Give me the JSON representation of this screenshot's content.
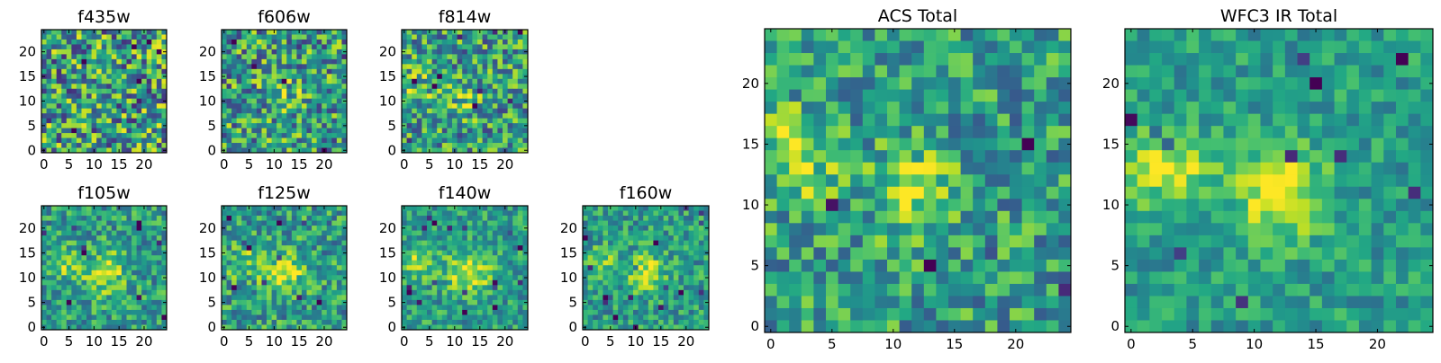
{
  "chart_data": {
    "type": "heatmap",
    "colormap": "viridis",
    "panels": [
      {
        "title": "f435w",
        "rows": 25,
        "cols": 25,
        "xlim": [
          0,
          24
        ],
        "ylim": [
          0,
          24
        ],
        "xticks": [
          0,
          5,
          10,
          15,
          20
        ],
        "yticks": [
          0,
          5,
          10,
          15,
          20
        ],
        "pattern": "noise",
        "noise": 0.85,
        "sources": []
      },
      {
        "title": "f606w",
        "rows": 25,
        "cols": 25,
        "xlim": [
          0,
          24
        ],
        "ylim": [
          0,
          24
        ],
        "xticks": [
          0,
          5,
          10,
          15,
          20
        ],
        "yticks": [
          0,
          5,
          10,
          15,
          20
        ],
        "pattern": "noise",
        "noise": 0.75,
        "sources": [
          {
            "x": 12,
            "y": 11,
            "amp": 0.15,
            "sigma": 2.5
          }
        ]
      },
      {
        "title": "f814w",
        "rows": 25,
        "cols": 25,
        "xlim": [
          0,
          24
        ],
        "ylim": [
          0,
          24
        ],
        "xticks": [
          0,
          5,
          10,
          15,
          20
        ],
        "yticks": [
          0,
          5,
          10,
          15,
          20
        ],
        "pattern": "noise",
        "noise": 0.7,
        "sources": [
          {
            "x": 12,
            "y": 11,
            "amp": 0.2,
            "sigma": 2.5
          },
          {
            "x": 3,
            "y": 13,
            "amp": 0.15,
            "sigma": 2.5
          }
        ]
      },
      {
        "title": "f105w",
        "rows": 25,
        "cols": 25,
        "xlim": [
          0,
          24
        ],
        "ylim": [
          0,
          24
        ],
        "xticks": [
          0,
          5,
          10,
          15,
          20
        ],
        "yticks": [
          0,
          5,
          10,
          15,
          20
        ],
        "pattern": "sources",
        "noise": 0.5,
        "sources": [
          {
            "x": 12,
            "y": 11,
            "amp": 0.35,
            "sigma": 3
          },
          {
            "x": 4,
            "y": 13,
            "amp": 0.3,
            "sigma": 2.2
          }
        ]
      },
      {
        "title": "f125w",
        "rows": 25,
        "cols": 25,
        "xlim": [
          0,
          24
        ],
        "ylim": [
          0,
          24
        ],
        "xticks": [
          0,
          5,
          10,
          15,
          20
        ],
        "yticks": [
          0,
          5,
          10,
          15,
          20
        ],
        "pattern": "sources",
        "noise": 0.55,
        "sources": [
          {
            "x": 12,
            "y": 11,
            "amp": 0.3,
            "sigma": 3
          },
          {
            "x": 4,
            "y": 13,
            "amp": 0.25,
            "sigma": 2.2
          }
        ]
      },
      {
        "title": "f140w",
        "rows": 25,
        "cols": 25,
        "xlim": [
          0,
          24
        ],
        "ylim": [
          0,
          24
        ],
        "xticks": [
          0,
          5,
          10,
          15,
          20
        ],
        "yticks": [
          0,
          5,
          10,
          15,
          20
        ],
        "pattern": "sources",
        "noise": 0.45,
        "sources": [
          {
            "x": 13,
            "y": 11,
            "amp": 0.4,
            "sigma": 3
          },
          {
            "x": 3,
            "y": 13,
            "amp": 0.3,
            "sigma": 2.2
          }
        ]
      },
      {
        "title": "f160w",
        "rows": 25,
        "cols": 25,
        "xlim": [
          0,
          24
        ],
        "ylim": [
          0,
          24
        ],
        "xticks": [
          0,
          5,
          10,
          15,
          20
        ],
        "yticks": [
          0,
          5,
          10,
          15,
          20
        ],
        "pattern": "sources",
        "noise": 0.45,
        "sources": [
          {
            "x": 12,
            "y": 11,
            "amp": 0.4,
            "sigma": 2.5
          },
          {
            "x": 3,
            "y": 13,
            "amp": 0.3,
            "sigma": 2
          }
        ]
      },
      {
        "title": "ACS Total",
        "rows": 25,
        "cols": 25,
        "xlim": [
          0,
          24
        ],
        "ylim": [
          0,
          24
        ],
        "xticks": [
          0,
          5,
          10,
          15,
          20
        ],
        "yticks": [
          0,
          5,
          10,
          15,
          20
        ],
        "pattern": "sources",
        "noise": 0.55,
        "sources": [
          {
            "x": 12,
            "y": 11,
            "amp": 0.35,
            "sigma": 2.5
          },
          {
            "x": 2,
            "y": 14,
            "amp": 0.35,
            "sigma": 2.5
          }
        ]
      },
      {
        "title": "WFC3 IR Total",
        "rows": 25,
        "cols": 25,
        "xlim": [
          0,
          24
        ],
        "ylim": [
          0,
          24
        ],
        "xticks": [
          0,
          5,
          10,
          15,
          20
        ],
        "yticks": [
          0,
          5,
          10,
          15,
          20
        ],
        "pattern": "sources",
        "noise": 0.35,
        "sources": [
          {
            "x": 12,
            "y": 11,
            "amp": 0.5,
            "sigma": 2.5
          },
          {
            "x": 3,
            "y": 13,
            "amp": 0.4,
            "sigma": 2.2
          }
        ]
      }
    ]
  }
}
